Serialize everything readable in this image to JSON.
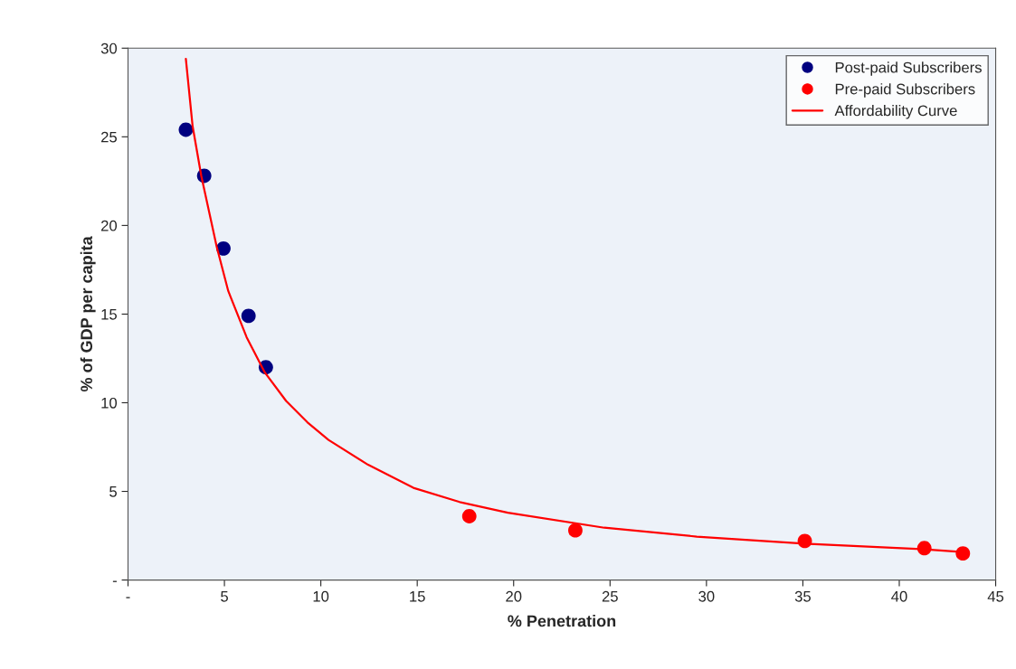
{
  "chart_data": {
    "type": "scatter",
    "xlabel": "% Penetration",
    "ylabel": "% of GDP per capita",
    "xlim": [
      0,
      45
    ],
    "ylim": [
      0,
      30
    ],
    "xticks": [
      {
        "value": 0,
        "label": "-"
      },
      5,
      10,
      15,
      20,
      25,
      30,
      35,
      40,
      45
    ],
    "yticks": [
      {
        "value": 0,
        "label": "-"
      },
      5,
      10,
      15,
      20,
      25,
      30
    ],
    "grid": false,
    "legend": "top right",
    "series": [
      {
        "name": "Post-paid Subscribers",
        "marker": "circle",
        "color": "#000080",
        "x": [
          3.0,
          3.95,
          4.95,
          6.25,
          7.15
        ],
        "values": [
          25.4,
          22.8,
          18.7,
          14.9,
          12.0
        ]
      },
      {
        "name": "Pre-paid Subscribers",
        "marker": "circle",
        "color": "#ff0000",
        "x": [
          17.7,
          23.2,
          35.1,
          41.3,
          43.3
        ],
        "values": [
          3.6,
          2.8,
          2.2,
          1.8,
          1.5
        ]
      },
      {
        "name": "Affordability Curve",
        "type": "line",
        "color": "#ff0000",
        "x": [
          3.0,
          3.35,
          3.8,
          4.6,
          5.2,
          6.15,
          7.1,
          8.2,
          9.3,
          10.4,
          12.45,
          14.8,
          17.2,
          19.7,
          24.7,
          29.5,
          35.1,
          41.3,
          43.3
        ],
        "values": [
          29.4,
          25.6,
          22.8,
          18.8,
          16.3,
          13.7,
          11.7,
          10.1,
          8.9,
          7.9,
          6.5,
          5.2,
          4.4,
          3.8,
          2.95,
          2.45,
          2.05,
          1.73,
          1.58
        ]
      }
    ]
  }
}
